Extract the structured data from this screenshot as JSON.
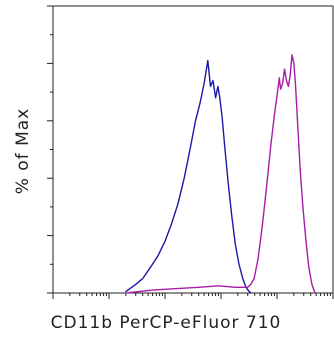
{
  "chart_data": {
    "type": "line",
    "title": "",
    "xlabel": "CD11b PerCP-eFluor 710",
    "ylabel": "% of Max",
    "x_scale": "log",
    "xlim": [
      1,
      100000
    ],
    "ylim": [
      0,
      100
    ],
    "grid": false,
    "legend": "none",
    "x_tick_labels_shown": false,
    "y_tick_labels_shown": false,
    "series": [
      {
        "color": "#1a1aa6",
        "x": [
          20,
          30,
          40,
          55,
          75,
          100,
          130,
          170,
          220,
          280,
          350,
          420,
          500,
          580,
          650,
          720,
          800,
          880,
          950,
          1050,
          1180,
          1350,
          1550,
          1800,
          2100,
          2450,
          2800,
          3100,
          3400
        ],
        "y": [
          0.5,
          3,
          5,
          9,
          13,
          18,
          24,
          31,
          40,
          50,
          60,
          66,
          73,
          81,
          72,
          74,
          68,
          72,
          68,
          61,
          50,
          38,
          27,
          17,
          10,
          5,
          2,
          0.8,
          0
        ]
      },
      {
        "color": "#a61ea6",
        "x": [
          20,
          60,
          150,
          400,
          900,
          1800,
          2600,
          3000,
          3400,
          3900,
          4600,
          5500,
          6600,
          7800,
          9000,
          10200,
          11000,
          11600,
          12600,
          13600,
          14800,
          16000,
          17200,
          18500,
          20000,
          21500,
          23500,
          26000,
          29000,
          33000,
          37000,
          42000,
          48000
        ],
        "y": [
          0,
          1,
          1.5,
          2,
          2.5,
          2,
          2,
          2,
          3,
          5,
          12,
          24,
          38,
          52,
          62,
          70,
          75,
          71,
          73,
          78,
          74,
          72,
          76,
          83,
          80,
          72,
          58,
          43,
          30,
          18,
          9,
          3,
          0
        ]
      }
    ]
  }
}
